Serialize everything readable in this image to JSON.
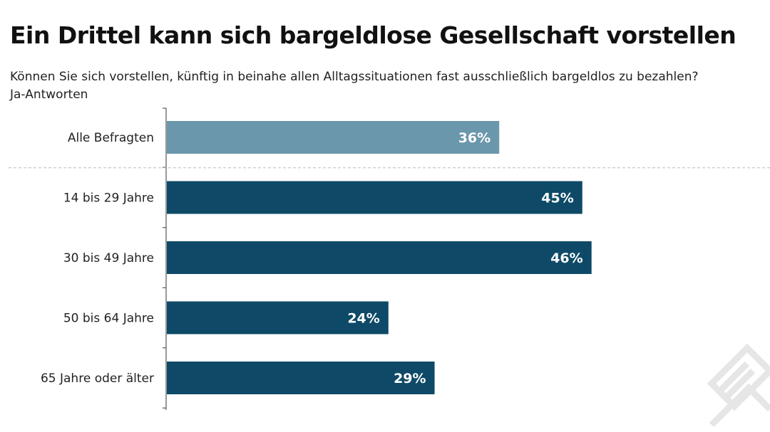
{
  "title": "Ein Drittel kann sich bargeldlose Gesellschaft vorstellen",
  "subtitle_line1": "Können Sie sich vorstellen, künftig in beinahe allen Alltagssituationen fast ausschließlich bargeldlos zu bezahlen?",
  "subtitle_line2": "Ja-Antworten",
  "colors": {
    "highlight": "#6a97ab",
    "primary": "#0e4a67",
    "axis": "#555555",
    "divider": "#bbbbbb"
  },
  "chart_data": {
    "type": "bar",
    "orientation": "horizontal",
    "categories": [
      "Alle Befragten",
      "14 bis 29 Jahre",
      "30 bis 49 Jahre",
      "50 bis 64 Jahre",
      "65 Jahre oder älter"
    ],
    "values": [
      36,
      45,
      46,
      24,
      29
    ],
    "value_labels": [
      "36%",
      "45%",
      "46%",
      "24%",
      "29%"
    ],
    "unit": "%",
    "highlight_index": 0,
    "xlim": [
      0,
      60
    ],
    "grid": false,
    "legend": "none"
  }
}
